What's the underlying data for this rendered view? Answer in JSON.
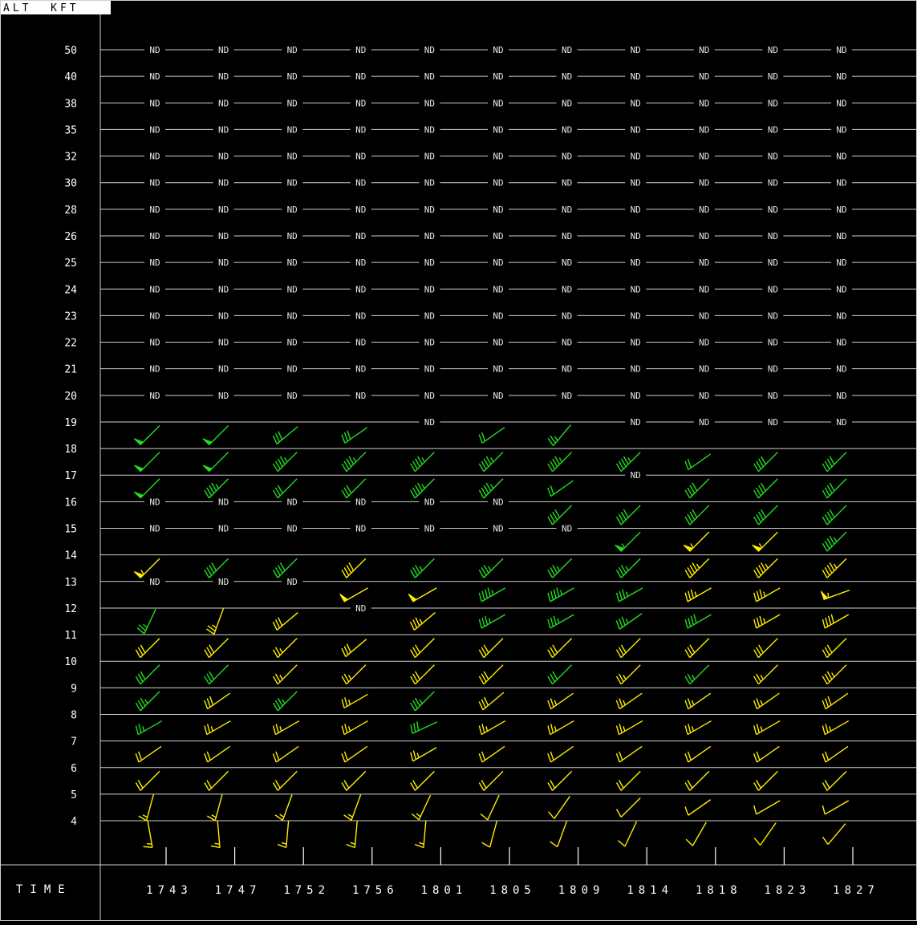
{
  "header": {
    "alt_label": "ALT  KFT"
  },
  "footer": {
    "time_label": "TIME"
  },
  "chart_data": {
    "type": "wind-profile",
    "nd_label": "ND",
    "y_unit": "KFT",
    "altitudes": [
      "50",
      "40",
      "38",
      "35",
      "32",
      "30",
      "28",
      "26",
      "25",
      "24",
      "23",
      "22",
      "21",
      "20",
      "19",
      "18",
      "17",
      "16",
      "15",
      "14",
      "13",
      "12",
      "11",
      "10",
      "9",
      "8",
      "7",
      "6",
      "5",
      "4"
    ],
    "times": [
      "1743",
      "1747",
      "1752",
      "1756",
      "1801",
      "1805",
      "1809",
      "1814",
      "1818",
      "1823",
      "1827"
    ],
    "colors": {
      "high": "#22dd22",
      "low": "#ffee00",
      "ground": "#ffee00"
    },
    "no_data": {
      "50": [
        0,
        1,
        2,
        3,
        4,
        5,
        6,
        7,
        8,
        9,
        10
      ],
      "40": [
        0,
        1,
        2,
        3,
        4,
        5,
        6,
        7,
        8,
        9,
        10
      ],
      "38": [
        0,
        1,
        2,
        3,
        4,
        5,
        6,
        7,
        8,
        9,
        10
      ],
      "35": [
        0,
        1,
        2,
        3,
        4,
        5,
        6,
        7,
        8,
        9,
        10
      ],
      "32": [
        0,
        1,
        2,
        3,
        4,
        5,
        6,
        7,
        8,
        9,
        10
      ],
      "30": [
        0,
        1,
        2,
        3,
        4,
        5,
        6,
        7,
        8,
        9,
        10
      ],
      "28": [
        0,
        1,
        2,
        3,
        4,
        5,
        6,
        7,
        8,
        9,
        10
      ],
      "26": [
        0,
        1,
        2,
        3,
        4,
        5,
        6,
        7,
        8,
        9,
        10
      ],
      "25": [
        0,
        1,
        2,
        3,
        4,
        5,
        6,
        7,
        8,
        9,
        10
      ],
      "24": [
        0,
        1,
        2,
        3,
        4,
        5,
        6,
        7,
        8,
        9,
        10
      ],
      "23": [
        0,
        1,
        2,
        3,
        4,
        5,
        6,
        7,
        8,
        9,
        10
      ],
      "22": [
        0,
        1,
        2,
        3,
        4,
        5,
        6,
        7,
        8,
        9,
        10
      ],
      "21": [
        0,
        1,
        2,
        3,
        4,
        5,
        6,
        7,
        8,
        9,
        10
      ],
      "20": [
        0,
        1,
        2,
        3,
        4,
        5,
        6,
        7,
        8,
        9,
        10
      ],
      "19": [
        4,
        7,
        8,
        9,
        10
      ],
      "17": [
        7
      ],
      "16": [
        0,
        1,
        2,
        3,
        4,
        5
      ],
      "15": [
        0,
        1,
        2,
        3,
        4,
        5,
        6
      ],
      "13": [
        0,
        1,
        2
      ],
      "12": [
        3
      ]
    },
    "barbs": {
      "18.5": [
        {
          "c": 0,
          "dir": 225,
          "spd": 50,
          "col": "high"
        },
        {
          "c": 1,
          "dir": 225,
          "spd": 50,
          "col": "high"
        },
        {
          "c": 2,
          "dir": 230,
          "spd": 30,
          "col": "high"
        },
        {
          "c": 3,
          "dir": 235,
          "spd": 30,
          "col": "high"
        },
        {
          "c": 5,
          "dir": 235,
          "spd": 20,
          "col": "high"
        },
        {
          "c": 6,
          "dir": 220,
          "spd": 25,
          "col": "high"
        }
      ],
      "17.5": [
        {
          "c": 0,
          "dir": 225,
          "spd": 50,
          "col": "high"
        },
        {
          "c": 1,
          "dir": 225,
          "spd": 50,
          "col": "high"
        },
        {
          "c": 2,
          "dir": 225,
          "spd": 45,
          "col": "high"
        },
        {
          "c": 3,
          "dir": 225,
          "spd": 45,
          "col": "high"
        },
        {
          "c": 4,
          "dir": 225,
          "spd": 45,
          "col": "high"
        },
        {
          "c": 5,
          "dir": 225,
          "spd": 45,
          "col": "high"
        },
        {
          "c": 6,
          "dir": 225,
          "spd": 45,
          "col": "high"
        },
        {
          "c": 7,
          "dir": 225,
          "spd": 45,
          "col": "high"
        },
        {
          "c": 8,
          "dir": 235,
          "spd": 20,
          "col": "high"
        },
        {
          "c": 9,
          "dir": 225,
          "spd": 40,
          "col": "high"
        },
        {
          "c": 10,
          "dir": 225,
          "spd": 40,
          "col": "high"
        }
      ],
      "16.5": [
        {
          "c": 0,
          "dir": 225,
          "spd": 50,
          "col": "high"
        },
        {
          "c": 1,
          "dir": 225,
          "spd": 45,
          "col": "high"
        },
        {
          "c": 2,
          "dir": 225,
          "spd": 30,
          "col": "high"
        },
        {
          "c": 3,
          "dir": 225,
          "spd": 30,
          "col": "high"
        },
        {
          "c": 4,
          "dir": 225,
          "spd": 45,
          "col": "high"
        },
        {
          "c": 5,
          "dir": 225,
          "spd": 45,
          "col": "high"
        },
        {
          "c": 6,
          "dir": 235,
          "spd": 20,
          "col": "high"
        },
        {
          "c": 8,
          "dir": 225,
          "spd": 40,
          "col": "high"
        },
        {
          "c": 9,
          "dir": 225,
          "spd": 40,
          "col": "high"
        },
        {
          "c": 10,
          "dir": 225,
          "spd": 40,
          "col": "high"
        }
      ],
      "15.5": [
        {
          "c": 6,
          "dir": 225,
          "spd": 40,
          "col": "high"
        },
        {
          "c": 7,
          "dir": 225,
          "spd": 40,
          "col": "high"
        },
        {
          "c": 8,
          "dir": 225,
          "spd": 40,
          "col": "high"
        },
        {
          "c": 9,
          "dir": 225,
          "spd": 40,
          "col": "high"
        },
        {
          "c": 10,
          "dir": 225,
          "spd": 40,
          "col": "high"
        }
      ],
      "14.5": [
        {
          "c": 7,
          "dir": 225,
          "spd": 55,
          "col": "high"
        },
        {
          "c": 8,
          "dir": 225,
          "spd": 55,
          "col": "low"
        },
        {
          "c": 9,
          "dir": 225,
          "spd": 55,
          "col": "low"
        },
        {
          "c": 10,
          "dir": 225,
          "spd": 45,
          "col": "high"
        }
      ],
      "13.5": [
        {
          "c": 0,
          "dir": 225,
          "spd": 55,
          "col": "low"
        },
        {
          "c": 1,
          "dir": 225,
          "spd": 40,
          "col": "high"
        },
        {
          "c": 2,
          "dir": 225,
          "spd": 40,
          "col": "high"
        },
        {
          "c": 3,
          "dir": 225,
          "spd": 40,
          "col": "low"
        },
        {
          "c": 4,
          "dir": 225,
          "spd": 35,
          "col": "high"
        },
        {
          "c": 5,
          "dir": 225,
          "spd": 35,
          "col": "high"
        },
        {
          "c": 6,
          "dir": 225,
          "spd": 35,
          "col": "high"
        },
        {
          "c": 7,
          "dir": 225,
          "spd": 35,
          "col": "high"
        },
        {
          "c": 8,
          "dir": 225,
          "spd": 45,
          "col": "low"
        },
        {
          "c": 9,
          "dir": 225,
          "spd": 45,
          "col": "low"
        },
        {
          "c": 10,
          "dir": 225,
          "spd": 45,
          "col": "low"
        }
      ],
      "12.5": [
        {
          "c": 3,
          "dir": 240,
          "spd": 50,
          "col": "low"
        },
        {
          "c": 4,
          "dir": 240,
          "spd": 50,
          "col": "low"
        },
        {
          "c": 5,
          "dir": 240,
          "spd": 45,
          "col": "high"
        },
        {
          "c": 6,
          "dir": 240,
          "spd": 45,
          "col": "high"
        },
        {
          "c": 7,
          "dir": 240,
          "spd": 35,
          "col": "high"
        },
        {
          "c": 8,
          "dir": 240,
          "spd": 35,
          "col": "low"
        },
        {
          "c": 9,
          "dir": 240,
          "spd": 35,
          "col": "low"
        },
        {
          "c": 10,
          "dir": 250,
          "spd": 55,
          "col": "low"
        }
      ],
      "11.5": [
        {
          "c": 0,
          "dir": 205,
          "spd": 25,
          "col": "high"
        },
        {
          "c": 1,
          "dir": 200,
          "spd": 25,
          "col": "low"
        },
        {
          "c": 2,
          "dir": 230,
          "spd": 30,
          "col": "low"
        },
        {
          "c": 4,
          "dir": 230,
          "spd": 35,
          "col": "low"
        },
        {
          "c": 5,
          "dir": 240,
          "spd": 35,
          "col": "high"
        },
        {
          "c": 6,
          "dir": 240,
          "spd": 35,
          "col": "high"
        },
        {
          "c": 7,
          "dir": 235,
          "spd": 35,
          "col": "high"
        },
        {
          "c": 8,
          "dir": 240,
          "spd": 40,
          "col": "high"
        },
        {
          "c": 9,
          "dir": 240,
          "spd": 35,
          "col": "low"
        },
        {
          "c": 10,
          "dir": 240,
          "spd": 40,
          "col": "low"
        }
      ],
      "10.5": [
        {
          "c": 0,
          "dir": 225,
          "spd": 30,
          "col": "low"
        },
        {
          "c": 1,
          "dir": 225,
          "spd": 30,
          "col": "low"
        },
        {
          "c": 2,
          "dir": 225,
          "spd": 25,
          "col": "low"
        },
        {
          "c": 3,
          "dir": 230,
          "spd": 30,
          "col": "low"
        },
        {
          "c": 4,
          "dir": 225,
          "spd": 30,
          "col": "low"
        },
        {
          "c": 5,
          "dir": 225,
          "spd": 30,
          "col": "low"
        },
        {
          "c": 6,
          "dir": 225,
          "spd": 30,
          "col": "low"
        },
        {
          "c": 7,
          "dir": 225,
          "spd": 30,
          "col": "low"
        },
        {
          "c": 8,
          "dir": 225,
          "spd": 30,
          "col": "low"
        },
        {
          "c": 9,
          "dir": 225,
          "spd": 30,
          "col": "low"
        },
        {
          "c": 10,
          "dir": 225,
          "spd": 30,
          "col": "low"
        }
      ],
      "9.5": [
        {
          "c": 0,
          "dir": 225,
          "spd": 30,
          "col": "high"
        },
        {
          "c": 1,
          "dir": 225,
          "spd": 30,
          "col": "high"
        },
        {
          "c": 2,
          "dir": 225,
          "spd": 25,
          "col": "low"
        },
        {
          "c": 3,
          "dir": 225,
          "spd": 25,
          "col": "low"
        },
        {
          "c": 4,
          "dir": 225,
          "spd": 30,
          "col": "low"
        },
        {
          "c": 5,
          "dir": 225,
          "spd": 30,
          "col": "low"
        },
        {
          "c": 6,
          "dir": 225,
          "spd": 30,
          "col": "high"
        },
        {
          "c": 7,
          "dir": 225,
          "spd": 25,
          "col": "low"
        },
        {
          "c": 8,
          "dir": 225,
          "spd": 25,
          "col": "high"
        },
        {
          "c": 9,
          "dir": 225,
          "spd": 25,
          "col": "low"
        },
        {
          "c": 10,
          "dir": 225,
          "spd": 35,
          "col": "low"
        }
      ],
      "8.5": [
        {
          "c": 0,
          "dir": 225,
          "spd": 35,
          "col": "high"
        },
        {
          "c": 1,
          "dir": 235,
          "spd": 30,
          "col": "low"
        },
        {
          "c": 2,
          "dir": 225,
          "spd": 35,
          "col": "high"
        },
        {
          "c": 3,
          "dir": 240,
          "spd": 25,
          "col": "low"
        },
        {
          "c": 4,
          "dir": 225,
          "spd": 35,
          "col": "high"
        },
        {
          "c": 5,
          "dir": 230,
          "spd": 30,
          "col": "low"
        },
        {
          "c": 6,
          "dir": 235,
          "spd": 25,
          "col": "low"
        },
        {
          "c": 7,
          "dir": 235,
          "spd": 25,
          "col": "low"
        },
        {
          "c": 8,
          "dir": 235,
          "spd": 25,
          "col": "low"
        },
        {
          "c": 9,
          "dir": 235,
          "spd": 25,
          "col": "low"
        },
        {
          "c": 10,
          "dir": 235,
          "spd": 30,
          "col": "low"
        }
      ],
      "7.5": [
        {
          "c": 0,
          "dir": 240,
          "spd": 25,
          "col": "high"
        },
        {
          "c": 1,
          "dir": 240,
          "spd": 25,
          "col": "low"
        },
        {
          "c": 2,
          "dir": 240,
          "spd": 25,
          "col": "low"
        },
        {
          "c": 3,
          "dir": 240,
          "spd": 25,
          "col": "low"
        },
        {
          "c": 4,
          "dir": 245,
          "spd": 30,
          "col": "high"
        },
        {
          "c": 5,
          "dir": 240,
          "spd": 25,
          "col": "low"
        },
        {
          "c": 6,
          "dir": 240,
          "spd": 25,
          "col": "low"
        },
        {
          "c": 7,
          "dir": 240,
          "spd": 25,
          "col": "low"
        },
        {
          "c": 8,
          "dir": 240,
          "spd": 25,
          "col": "low"
        },
        {
          "c": 9,
          "dir": 240,
          "spd": 25,
          "col": "low"
        },
        {
          "c": 10,
          "dir": 240,
          "spd": 25,
          "col": "low"
        }
      ],
      "6.5": [
        {
          "c": 0,
          "dir": 235,
          "spd": 20,
          "col": "low"
        },
        {
          "c": 1,
          "dir": 235,
          "spd": 20,
          "col": "low"
        },
        {
          "c": 2,
          "dir": 235,
          "spd": 20,
          "col": "low"
        },
        {
          "c": 3,
          "dir": 235,
          "spd": 20,
          "col": "low"
        },
        {
          "c": 4,
          "dir": 240,
          "spd": 25,
          "col": "low"
        },
        {
          "c": 5,
          "dir": 235,
          "spd": 20,
          "col": "low"
        },
        {
          "c": 6,
          "dir": 235,
          "spd": 20,
          "col": "low"
        },
        {
          "c": 7,
          "dir": 235,
          "spd": 20,
          "col": "low"
        },
        {
          "c": 8,
          "dir": 235,
          "spd": 20,
          "col": "low"
        },
        {
          "c": 9,
          "dir": 235,
          "spd": 20,
          "col": "low"
        },
        {
          "c": 10,
          "dir": 235,
          "spd": 20,
          "col": "low"
        }
      ],
      "5.5": [
        {
          "c": 0,
          "dir": 225,
          "spd": 20,
          "col": "low"
        },
        {
          "c": 1,
          "dir": 225,
          "spd": 20,
          "col": "low"
        },
        {
          "c": 2,
          "dir": 225,
          "spd": 20,
          "col": "low"
        },
        {
          "c": 3,
          "dir": 225,
          "spd": 20,
          "col": "low"
        },
        {
          "c": 4,
          "dir": 225,
          "spd": 20,
          "col": "low"
        },
        {
          "c": 5,
          "dir": 225,
          "spd": 20,
          "col": "low"
        },
        {
          "c": 6,
          "dir": 225,
          "spd": 20,
          "col": "low"
        },
        {
          "c": 7,
          "dir": 225,
          "spd": 20,
          "col": "low"
        },
        {
          "c": 8,
          "dir": 225,
          "spd": 20,
          "col": "low"
        },
        {
          "c": 9,
          "dir": 225,
          "spd": 20,
          "col": "low"
        },
        {
          "c": 10,
          "dir": 225,
          "spd": 20,
          "col": "low"
        }
      ],
      "4.5": [
        {
          "c": 0,
          "dir": 195,
          "spd": 15,
          "col": "low"
        },
        {
          "c": 1,
          "dir": 195,
          "spd": 15,
          "col": "low"
        },
        {
          "c": 2,
          "dir": 200,
          "spd": 15,
          "col": "low"
        },
        {
          "c": 3,
          "dir": 200,
          "spd": 15,
          "col": "low"
        },
        {
          "c": 4,
          "dir": 205,
          "spd": 15,
          "col": "low"
        },
        {
          "c": 5,
          "dir": 205,
          "spd": 10,
          "col": "low"
        },
        {
          "c": 6,
          "dir": 215,
          "spd": 10,
          "col": "low"
        },
        {
          "c": 7,
          "dir": 225,
          "spd": 10,
          "col": "low"
        },
        {
          "c": 8,
          "dir": 235,
          "spd": 10,
          "col": "low"
        },
        {
          "c": 9,
          "dir": 240,
          "spd": 10,
          "col": "low"
        },
        {
          "c": 10,
          "dir": 240,
          "spd": 10,
          "col": "low"
        }
      ],
      "3.5": [
        {
          "c": 0,
          "dir": 170,
          "spd": 15,
          "col": "ground"
        },
        {
          "c": 1,
          "dir": 175,
          "spd": 15,
          "col": "ground"
        },
        {
          "c": 2,
          "dir": 185,
          "spd": 15,
          "col": "ground"
        },
        {
          "c": 3,
          "dir": 185,
          "spd": 15,
          "col": "ground"
        },
        {
          "c": 4,
          "dir": 185,
          "spd": 15,
          "col": "ground"
        },
        {
          "c": 5,
          "dir": 195,
          "spd": 10,
          "col": "ground"
        },
        {
          "c": 6,
          "dir": 200,
          "spd": 10,
          "col": "ground"
        },
        {
          "c": 7,
          "dir": 205,
          "spd": 10,
          "col": "ground"
        },
        {
          "c": 8,
          "dir": 210,
          "spd": 10,
          "col": "ground"
        },
        {
          "c": 9,
          "dir": 215,
          "spd": 10,
          "col": "ground"
        },
        {
          "c": 10,
          "dir": 220,
          "spd": 10,
          "col": "ground"
        }
      ]
    }
  }
}
